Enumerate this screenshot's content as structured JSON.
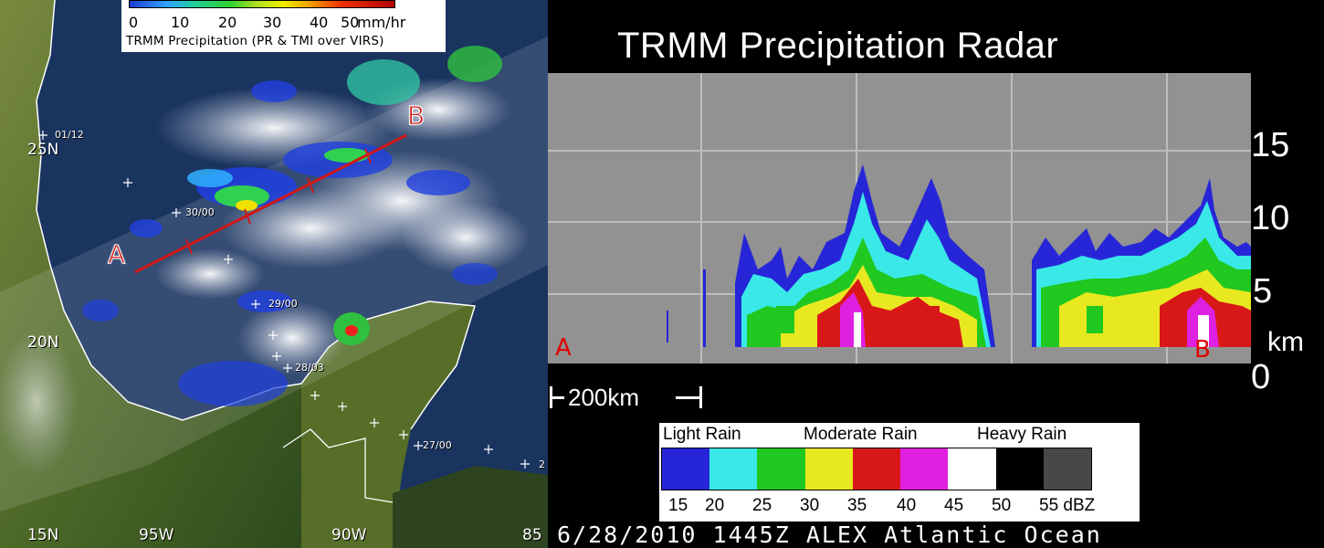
{
  "precip_legend": {
    "ticks": [
      "0",
      "10",
      "20",
      "30",
      "40",
      "50"
    ],
    "unit": "mm/hr",
    "caption": "TRMM Precipitation  (PR & TMI  over VIRS)"
  },
  "map": {
    "lat_labels": [
      "25N",
      "20N",
      "15N"
    ],
    "lon_labels": [
      "95W",
      "90W",
      "85"
    ],
    "track_times": [
      "01/12",
      "30/00",
      "29/00",
      "28/03",
      "27/00",
      "2"
    ],
    "point_a": "A",
    "point_b": "B"
  },
  "radar": {
    "title": "TRMM Precipitation Radar",
    "altitude_ticks": [
      "15",
      "10",
      "5",
      "0"
    ],
    "altitude_unit": "km",
    "point_a": "A",
    "point_b": "B",
    "scale_bar": "200km"
  },
  "dbz_legend": {
    "categories": [
      "Light Rain",
      "Moderate Rain",
      "Heavy Rain"
    ],
    "colors": [
      "#2626d8",
      "#3ae8e8",
      "#20c820",
      "#e8e820",
      "#d81818",
      "#e020e0",
      "#ffffff",
      "#000000",
      "#484848"
    ],
    "values": [
      "15",
      "20",
      "25",
      "30",
      "35",
      "40",
      "45",
      "50",
      "55 dBZ"
    ]
  },
  "footer": "6/28/2010  1445Z   ALEX   Atlantic Ocean"
}
